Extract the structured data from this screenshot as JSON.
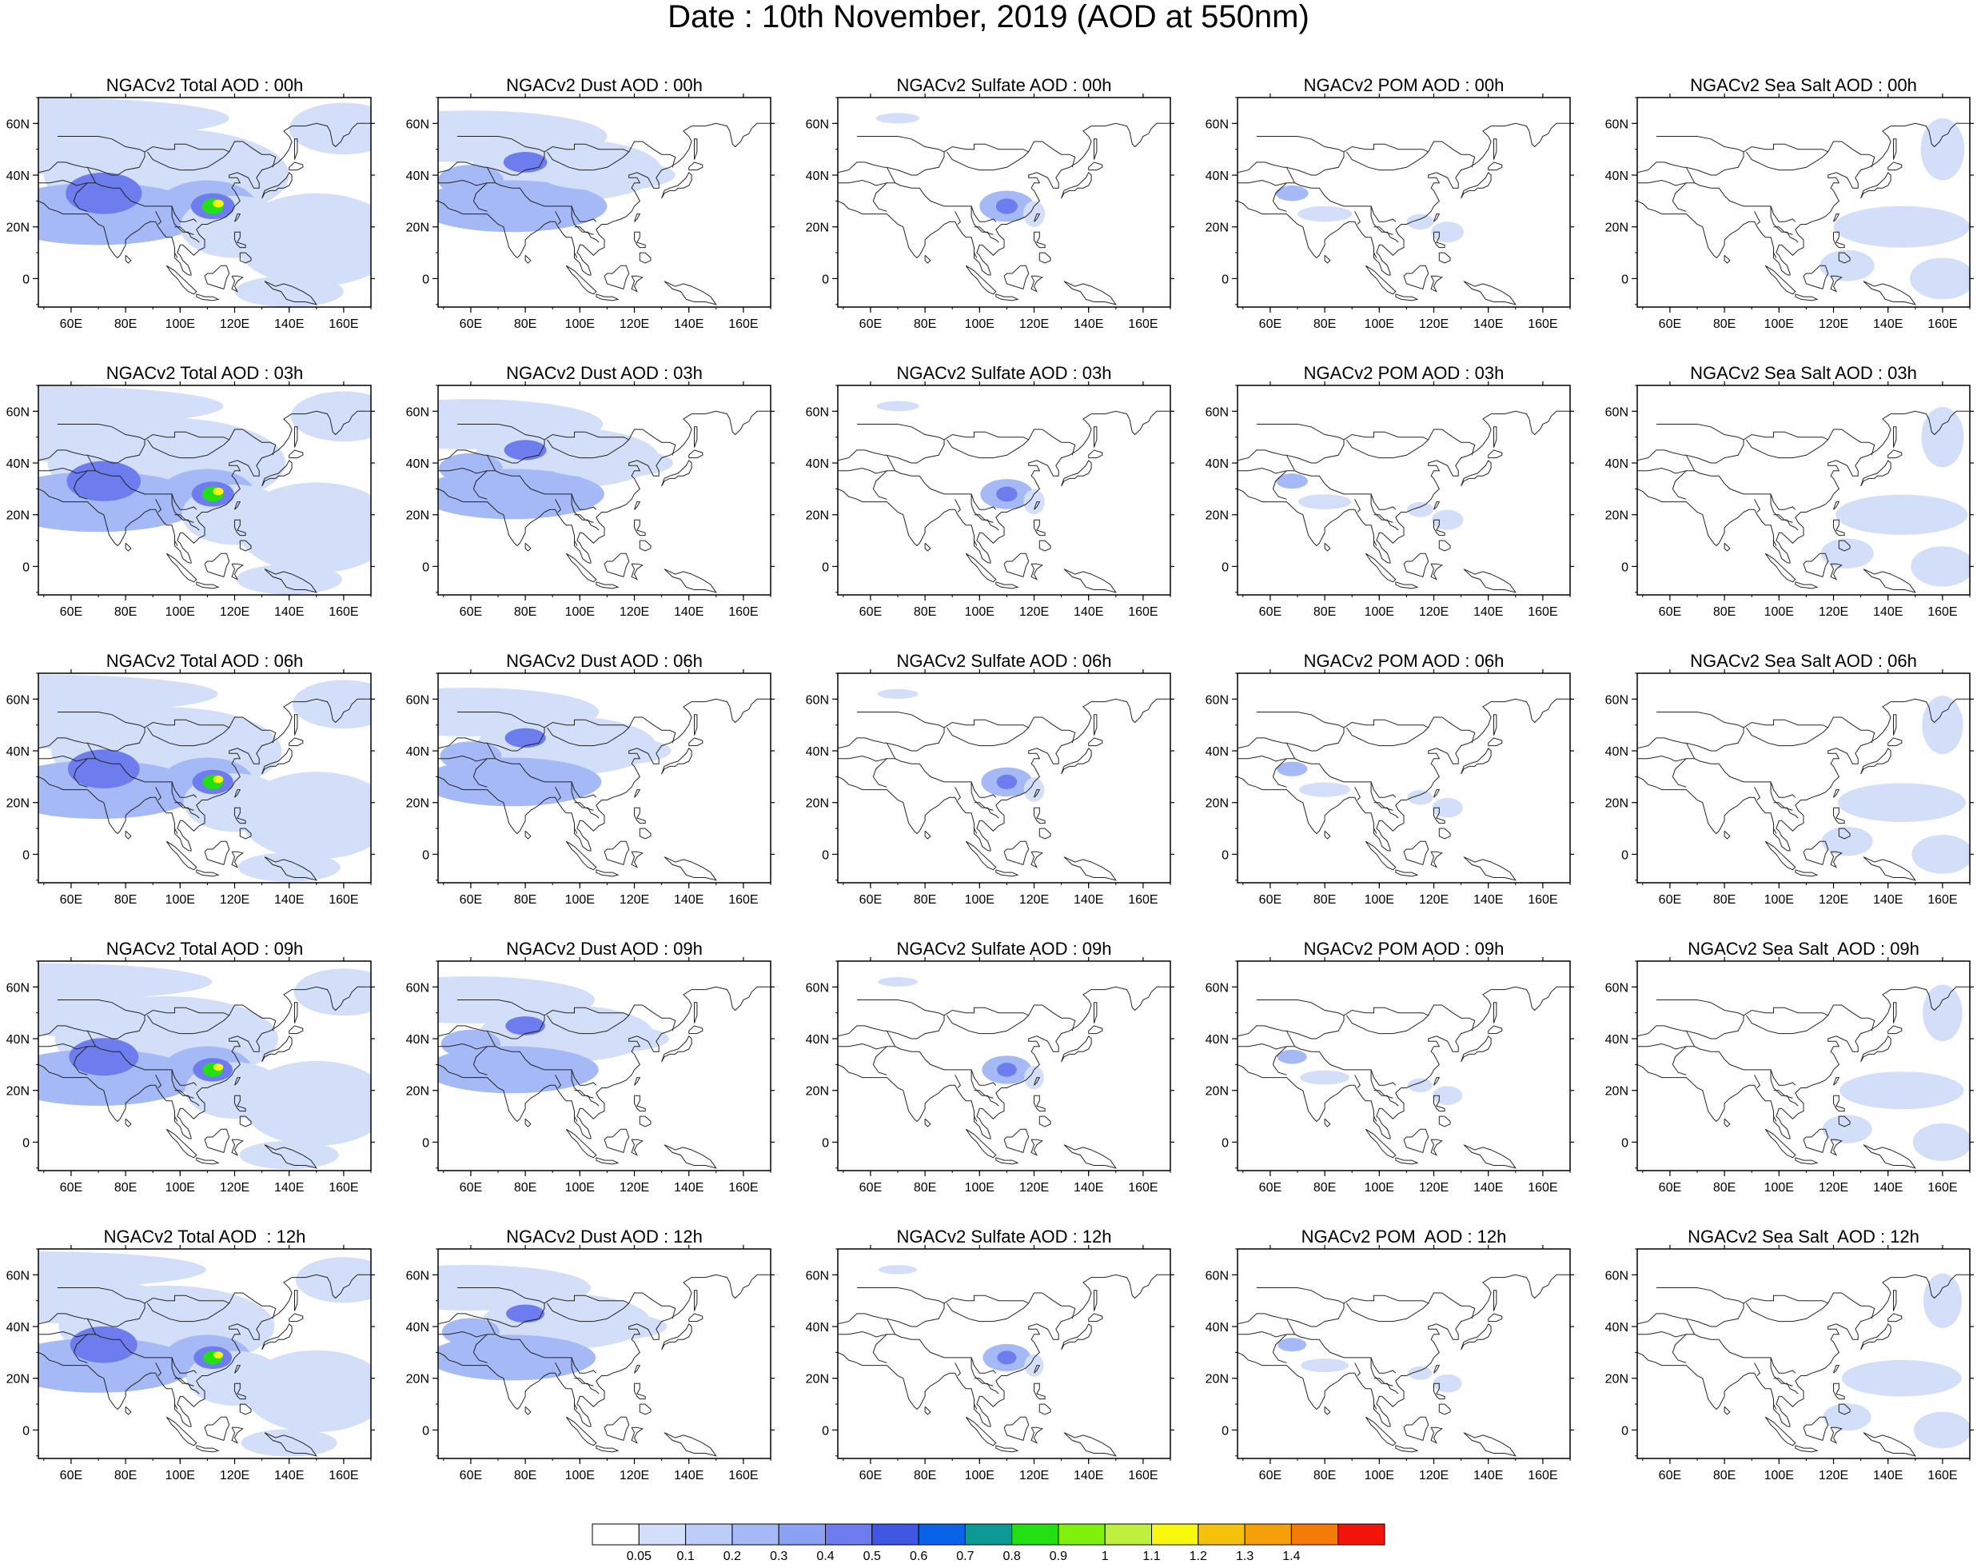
{
  "title": "Date : 10th November, 2019 (AOD at 550nm)",
  "map": {
    "lon_range": [
      48,
      170
    ],
    "lat_range": [
      -11,
      70
    ],
    "x_ticks": [
      "60E",
      "80E",
      "100E",
      "120E",
      "140E",
      "160E"
    ],
    "x_tick_values": [
      60,
      80,
      100,
      120,
      140,
      160
    ],
    "y_ticks": [
      "60N",
      "40N",
      "20N",
      "0"
    ],
    "y_tick_values": [
      60,
      40,
      20,
      0
    ]
  },
  "panels": [
    [
      "NGACv2 Total AOD : 00h",
      "NGACv2 Dust AOD : 00h",
      "NGACv2 Sulfate AOD : 00h",
      "NGACv2 POM AOD : 00h",
      "NGACv2 Sea Salt AOD : 00h"
    ],
    [
      "NGACv2 Total AOD : 03h",
      "NGACv2 Dust AOD : 03h",
      "NGACv2 Sulfate AOD : 03h",
      "NGACv2 POM AOD : 03h",
      "NGACv2 Sea Salt AOD : 03h"
    ],
    [
      "NGACv2 Total AOD : 06h",
      "NGACv2 Dust AOD : 06h",
      "NGACv2 Sulfate AOD : 06h",
      "NGACv2 POM AOD : 06h",
      "NGACv2 Sea Salt AOD : 06h"
    ],
    [
      "NGACv2 Total AOD : 09h",
      "NGACv2 Dust AOD : 09h",
      "NGACv2 Sulfate AOD : 09h",
      "NGACv2 POM AOD : 09h",
      "NGACv2 Sea Salt  AOD : 09h"
    ],
    [
      "NGACv2 Total AOD  : 12h",
      "NGACv2 Dust AOD : 12h",
      "NGACv2 Sulfate AOD : 12h",
      "NGACv2 POM  AOD : 12h",
      "NGACv2 Sea Salt  AOD : 12h"
    ]
  ],
  "colorbar": {
    "labels": [
      "0.05",
      "0.1",
      "0.2",
      "0.3",
      "0.4",
      "0.5",
      "0.6",
      "0.7",
      "0.8",
      "0.9",
      "1",
      "1.1",
      "1.2",
      "1.3",
      "1.4"
    ],
    "colors": [
      "#ffffff",
      "#d3def8",
      "#bccdf8",
      "#a4b9f6",
      "#8ba2f3",
      "#6e7ded",
      "#3f57e3",
      "#0a62e8",
      "#0e9a94",
      "#22e012",
      "#7ef00a",
      "#bef040",
      "#f7f80e",
      "#f5c10a",
      "#f5a00a",
      "#f47a0a",
      "#f3140a"
    ]
  },
  "colors": {
    "low_aod": "#d3def8",
    "mid_aod": "#a4b9f6",
    "high_aod": "#6e7ded",
    "peak_aod": "#22e012",
    "extreme_aod": "#f7f80e",
    "coastline": "#222222"
  }
}
